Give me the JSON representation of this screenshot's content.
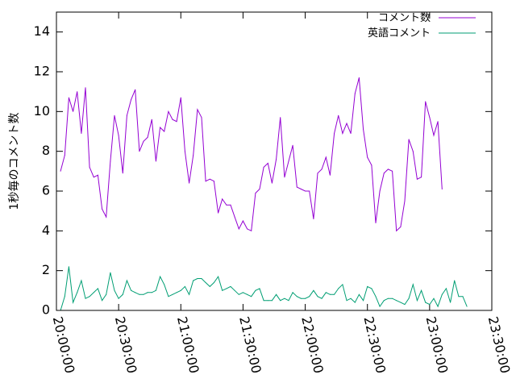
{
  "chart_data": {
    "type": "line",
    "title": "",
    "xlabel": "",
    "ylabel": "1秒毎のコメント数",
    "ylim": [
      0,
      15
    ],
    "xlim": [
      "20:00:00",
      "23:30:00"
    ],
    "y_ticks": [
      "0",
      "2",
      "4",
      "6",
      "8",
      "10",
      "12",
      "14"
    ],
    "x_ticks": [
      "20:00:00",
      "20:30:00",
      "21:00:00",
      "21:30:00",
      "22:00:00",
      "22:30:00",
      "23:00:00",
      "23:30:00"
    ],
    "grid": false,
    "legend_position": "top-right",
    "series": [
      {
        "name": "コメント数",
        "color": "#9400d3",
        "x": [
          "20:02:00",
          "20:04:00",
          "20:06:00",
          "20:08:00",
          "20:10:00",
          "20:12:00",
          "20:14:00",
          "20:16:00",
          "20:18:00",
          "20:20:00",
          "20:22:00",
          "20:24:00",
          "20:26:00",
          "20:28:00",
          "20:30:00",
          "20:32:00",
          "20:34:00",
          "20:36:00",
          "20:38:00",
          "20:40:00",
          "20:42:00",
          "20:44:00",
          "20:46:00",
          "20:48:00",
          "20:50:00",
          "20:52:00",
          "20:54:00",
          "20:56:00",
          "20:58:00",
          "21:00:00",
          "21:02:00",
          "21:04:00",
          "21:06:00",
          "21:08:00",
          "21:10:00",
          "21:12:00",
          "21:14:00",
          "21:16:00",
          "21:18:00",
          "21:20:00",
          "21:22:00",
          "21:24:00",
          "21:26:00",
          "21:28:00",
          "21:30:00",
          "21:32:00",
          "21:34:00",
          "21:36:00",
          "21:38:00",
          "21:40:00",
          "21:42:00",
          "21:44:00",
          "21:46:00",
          "21:48:00",
          "21:50:00",
          "21:52:00",
          "21:54:00",
          "21:56:00",
          "21:58:00",
          "22:00:00",
          "22:02:00",
          "22:04:00",
          "22:06:00",
          "22:08:00",
          "22:10:00",
          "22:12:00",
          "22:14:00",
          "22:16:00",
          "22:18:00",
          "22:20:00",
          "22:22:00",
          "22:24:00",
          "22:26:00",
          "22:28:00",
          "22:30:00",
          "22:32:00",
          "22:34:00",
          "22:36:00",
          "22:38:00",
          "22:40:00",
          "22:42:00",
          "22:44:00",
          "22:46:00",
          "22:48:00",
          "22:50:00",
          "22:52:00",
          "22:54:00",
          "22:56:00",
          "22:58:00",
          "23:00:00",
          "23:02:00",
          "23:04:00",
          "23:06:00"
        ],
        "values": [
          7.0,
          7.8,
          10.7,
          10.0,
          11.0,
          8.9,
          11.2,
          7.2,
          6.7,
          6.8,
          5.1,
          4.7,
          7.5,
          9.8,
          8.8,
          6.9,
          9.8,
          10.6,
          11.1,
          8.0,
          8.5,
          8.7,
          9.6,
          7.5,
          9.2,
          9.0,
          10.0,
          9.6,
          9.5,
          10.7,
          8.0,
          6.4,
          7.8,
          10.1,
          9.7,
          6.5,
          6.6,
          6.5,
          4.9,
          5.6,
          5.3,
          5.3,
          4.7,
          4.1,
          4.5,
          4.1,
          4.0,
          5.9,
          6.1,
          7.2,
          7.4,
          6.4,
          7.6,
          9.7,
          6.7,
          7.5,
          8.3,
          6.2,
          6.1,
          6.0,
          6.0,
          4.6,
          6.9,
          7.1,
          7.7,
          6.8,
          8.9,
          9.8,
          8.9,
          9.4,
          8.9,
          10.9,
          11.7,
          9.1,
          7.7,
          7.3,
          4.4,
          6.0,
          6.9,
          7.1,
          7.0,
          4.0,
          4.2,
          5.5,
          8.6,
          8.0,
          6.6,
          6.7,
          10.5,
          9.7,
          8.8,
          9.5,
          6.1
        ]
      },
      {
        "name": "英語コメント",
        "color": "#009e73",
        "x": [
          "20:02:00",
          "20:04:00",
          "20:06:00",
          "20:08:00",
          "20:10:00",
          "20:12:00",
          "20:14:00",
          "20:16:00",
          "20:18:00",
          "20:20:00",
          "20:22:00",
          "20:24:00",
          "20:26:00",
          "20:28:00",
          "20:30:00",
          "20:32:00",
          "20:34:00",
          "20:36:00",
          "20:38:00",
          "20:40:00",
          "20:42:00",
          "20:44:00",
          "20:46:00",
          "20:48:00",
          "20:50:00",
          "20:52:00",
          "20:54:00",
          "20:56:00",
          "20:58:00",
          "21:00:00",
          "21:02:00",
          "21:04:00",
          "21:06:00",
          "21:08:00",
          "21:10:00",
          "21:12:00",
          "21:14:00",
          "21:16:00",
          "21:18:00",
          "21:20:00",
          "21:22:00",
          "21:24:00",
          "21:26:00",
          "21:28:00",
          "21:30:00",
          "21:32:00",
          "21:34:00",
          "21:36:00",
          "21:38:00",
          "21:40:00",
          "21:42:00",
          "21:44:00",
          "21:46:00",
          "21:48:00",
          "21:50:00",
          "21:52:00",
          "21:54:00",
          "21:56:00",
          "21:58:00",
          "22:00:00",
          "22:02:00",
          "22:04:00",
          "22:06:00",
          "22:08:00",
          "22:10:00",
          "22:12:00",
          "22:14:00",
          "22:16:00",
          "22:18:00",
          "22:20:00",
          "22:22:00",
          "22:24:00",
          "22:26:00",
          "22:28:00",
          "22:30:00",
          "22:32:00",
          "22:34:00",
          "22:36:00",
          "22:38:00",
          "22:40:00",
          "22:42:00",
          "22:44:00",
          "22:46:00",
          "22:48:00",
          "22:50:00",
          "22:52:00",
          "22:54:00",
          "22:56:00",
          "22:58:00",
          "23:00:00",
          "23:02:00",
          "23:04:00",
          "23:06:00",
          "23:08:00",
          "23:10:00",
          "23:12:00",
          "23:14:00",
          "23:16:00",
          "23:18:00"
        ],
        "values": [
          0.0,
          0.7,
          2.2,
          0.4,
          0.9,
          1.5,
          0.6,
          0.7,
          0.9,
          1.1,
          0.5,
          0.8,
          1.9,
          1.0,
          0.6,
          0.8,
          1.5,
          1.0,
          0.9,
          0.8,
          0.8,
          0.9,
          0.9,
          1.0,
          1.7,
          1.3,
          0.7,
          0.8,
          0.9,
          1.0,
          1.2,
          0.8,
          1.5,
          1.6,
          1.6,
          1.4,
          1.2,
          1.4,
          1.7,
          1.0,
          1.1,
          1.2,
          1.0,
          0.8,
          0.9,
          0.8,
          0.7,
          1.0,
          1.1,
          0.5,
          0.5,
          0.5,
          0.8,
          0.5,
          0.6,
          0.5,
          0.9,
          0.7,
          0.6,
          0.6,
          0.7,
          1.0,
          0.7,
          0.6,
          0.9,
          0.8,
          0.8,
          1.1,
          1.3,
          0.5,
          0.6,
          0.4,
          0.8,
          0.5,
          1.2,
          1.1,
          0.7,
          0.2,
          0.5,
          0.6,
          0.6,
          0.5,
          0.4,
          0.3,
          0.6,
          1.3,
          0.5,
          1.0,
          0.4,
          0.3,
          0.6,
          0.2,
          0.8,
          1.1,
          0.4,
          1.5,
          0.7,
          0.7,
          0.2
        ]
      }
    ]
  }
}
